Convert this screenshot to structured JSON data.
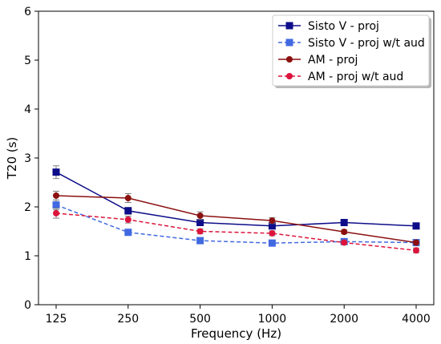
{
  "chart_data": {
    "type": "line",
    "xlabel": "Frequency (Hz)",
    "ylabel": "T20 (s)",
    "categories": [
      "125",
      "250",
      "500",
      "1000",
      "2000",
      "4000"
    ],
    "ylim": [
      0,
      6
    ],
    "yticks": [
      "0",
      "1",
      "2",
      "3",
      "4",
      "5",
      "6"
    ],
    "grid": false,
    "legend_position": "top-right",
    "series": [
      {
        "name": "Sisto V - proj",
        "values": [
          2.71,
          1.92,
          1.68,
          1.61,
          1.68,
          1.61
        ],
        "errors": [
          0.13,
          0.07,
          0.05,
          0.05,
          0.04,
          0.04
        ],
        "color": "#0d0d8a",
        "dashed": false,
        "marker": "square"
      },
      {
        "name": "Sisto V - proj w/t aud",
        "values": [
          2.04,
          1.48,
          1.31,
          1.26,
          1.29,
          1.27
        ],
        "errors": [
          0.1,
          0.05,
          0.04,
          0.03,
          0.03,
          0.03
        ],
        "color": "#4169e1",
        "dashed": true,
        "marker": "square"
      },
      {
        "name": "AM - proj",
        "values": [
          2.23,
          2.18,
          1.82,
          1.72,
          1.49,
          1.27
        ],
        "errors": [
          0.09,
          0.09,
          0.08,
          0.06,
          0.04,
          0.04
        ],
        "color": "#8b1010",
        "dashed": false,
        "marker": "circle"
      },
      {
        "name": "AM - proj w/t aud",
        "values": [
          1.87,
          1.74,
          1.5,
          1.46,
          1.27,
          1.11
        ],
        "errors": [
          0.1,
          0.07,
          0.05,
          0.05,
          0.04,
          0.05
        ],
        "color": "#dc143c",
        "dashed": true,
        "marker": "circle"
      }
    ]
  }
}
